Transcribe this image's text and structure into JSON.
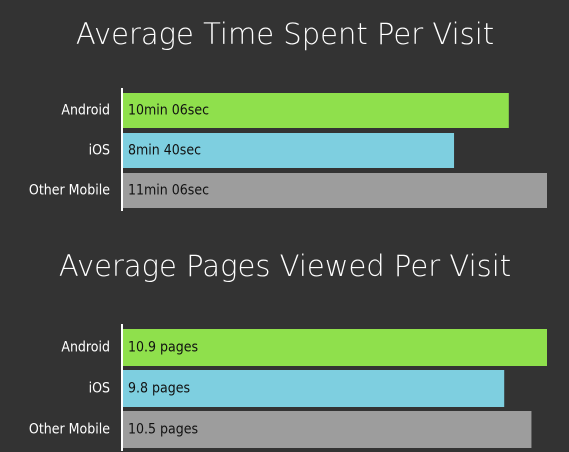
{
  "chart_data": [
    {
      "type": "bar",
      "orientation": "horizontal",
      "title": "Average Time Spent Per Visit",
      "categories": [
        "Android",
        "iOS",
        "Other Mobile"
      ],
      "values": [
        606,
        520,
        666
      ],
      "value_labels": [
        "10min 06sec",
        "8min 40sec",
        "11min 06sec"
      ],
      "colors": [
        "#8fe04c",
        "#7ecfe0",
        "#9d9d9d"
      ]
    },
    {
      "type": "bar",
      "orientation": "horizontal",
      "title": "Average Pages Viewed Per Visit",
      "categories": [
        "Android",
        "iOS",
        "Other Mobile"
      ],
      "values": [
        10.9,
        9.8,
        10.5
      ],
      "value_labels": [
        "10.9 pages",
        "9.8 pages",
        "10.5 pages"
      ],
      "colors": [
        "#8fe04c",
        "#7ecfe0",
        "#9d9d9d"
      ]
    }
  ]
}
